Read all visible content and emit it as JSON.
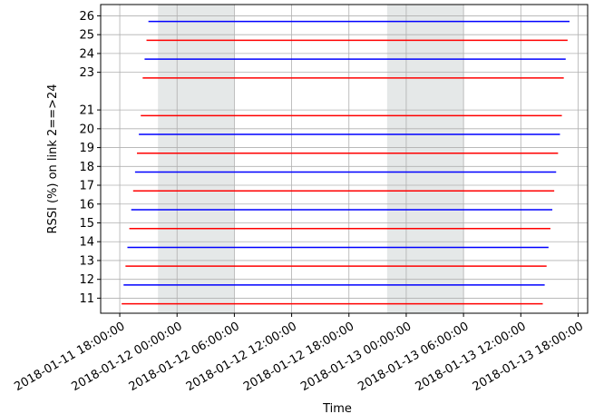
{
  "chart_data": {
    "type": "line",
    "title": "",
    "xlabel": "Time",
    "ylabel": "RSSI (%) on link 2==>24",
    "grid": true,
    "legend": "none",
    "xlim": [
      "2018-01-11 16:00:00",
      "2018-01-13 19:00:00"
    ],
    "ylim": [
      10.2,
      26.6
    ],
    "x_ticks": [
      "2018-01-11 18:00:00",
      "2018-01-12 00:00:00",
      "2018-01-12 06:00:00",
      "2018-01-12 12:00:00",
      "2018-01-12 18:00:00",
      "2018-01-13 00:00:00",
      "2018-01-13 06:00:00",
      "2018-01-13 12:00:00",
      "2018-01-13 18:00:00"
    ],
    "y_ticks": [
      11,
      12,
      13,
      14,
      15,
      16,
      17,
      18,
      19,
      20,
      21,
      23,
      24,
      25,
      26
    ],
    "shaded_spans": [
      {
        "start": "2018-01-11 22:00:00",
        "end": "2018-01-12 06:00:00",
        "color": "#e5e8e8"
      },
      {
        "start": "2018-01-12 22:00:00",
        "end": "2018-01-13 06:00:00",
        "color": "#e5e8e8"
      }
    ],
    "colors": {
      "red": "#ff0000",
      "blue": "#0000ff"
    },
    "series": [
      {
        "color": "red",
        "start": "2018-01-11 18:12:00",
        "end": "2018-01-13 14:18:00",
        "y": 10.7
      },
      {
        "color": "blue",
        "start": "2018-01-11 18:24:00",
        "end": "2018-01-13 14:30:00",
        "y": 11.7
      },
      {
        "color": "red",
        "start": "2018-01-11 18:36:00",
        "end": "2018-01-13 14:42:00",
        "y": 12.7
      },
      {
        "color": "blue",
        "start": "2018-01-11 18:48:00",
        "end": "2018-01-13 14:54:00",
        "y": 13.7
      },
      {
        "color": "red",
        "start": "2018-01-11 19:00:00",
        "end": "2018-01-13 15:06:00",
        "y": 14.7
      },
      {
        "color": "blue",
        "start": "2018-01-11 19:12:00",
        "end": "2018-01-13 15:18:00",
        "y": 15.7
      },
      {
        "color": "red",
        "start": "2018-01-11 19:24:00",
        "end": "2018-01-13 15:30:00",
        "y": 16.7
      },
      {
        "color": "blue",
        "start": "2018-01-11 19:36:00",
        "end": "2018-01-13 15:42:00",
        "y": 17.7
      },
      {
        "color": "red",
        "start": "2018-01-11 19:48:00",
        "end": "2018-01-13 15:54:00",
        "y": 18.7
      },
      {
        "color": "blue",
        "start": "2018-01-11 20:00:00",
        "end": "2018-01-13 16:06:00",
        "y": 19.7
      },
      {
        "color": "red",
        "start": "2018-01-11 20:12:00",
        "end": "2018-01-13 16:18:00",
        "y": 20.7
      },
      {
        "color": "red",
        "start": "2018-01-11 20:24:00",
        "end": "2018-01-13 16:30:00",
        "y": 22.7
      },
      {
        "color": "blue",
        "start": "2018-01-11 20:36:00",
        "end": "2018-01-13 16:42:00",
        "y": 23.7
      },
      {
        "color": "red",
        "start": "2018-01-11 20:48:00",
        "end": "2018-01-13 16:54:00",
        "y": 24.7
      },
      {
        "color": "blue",
        "start": "2018-01-11 21:00:00",
        "end": "2018-01-13 17:06:00",
        "y": 25.7
      }
    ]
  }
}
